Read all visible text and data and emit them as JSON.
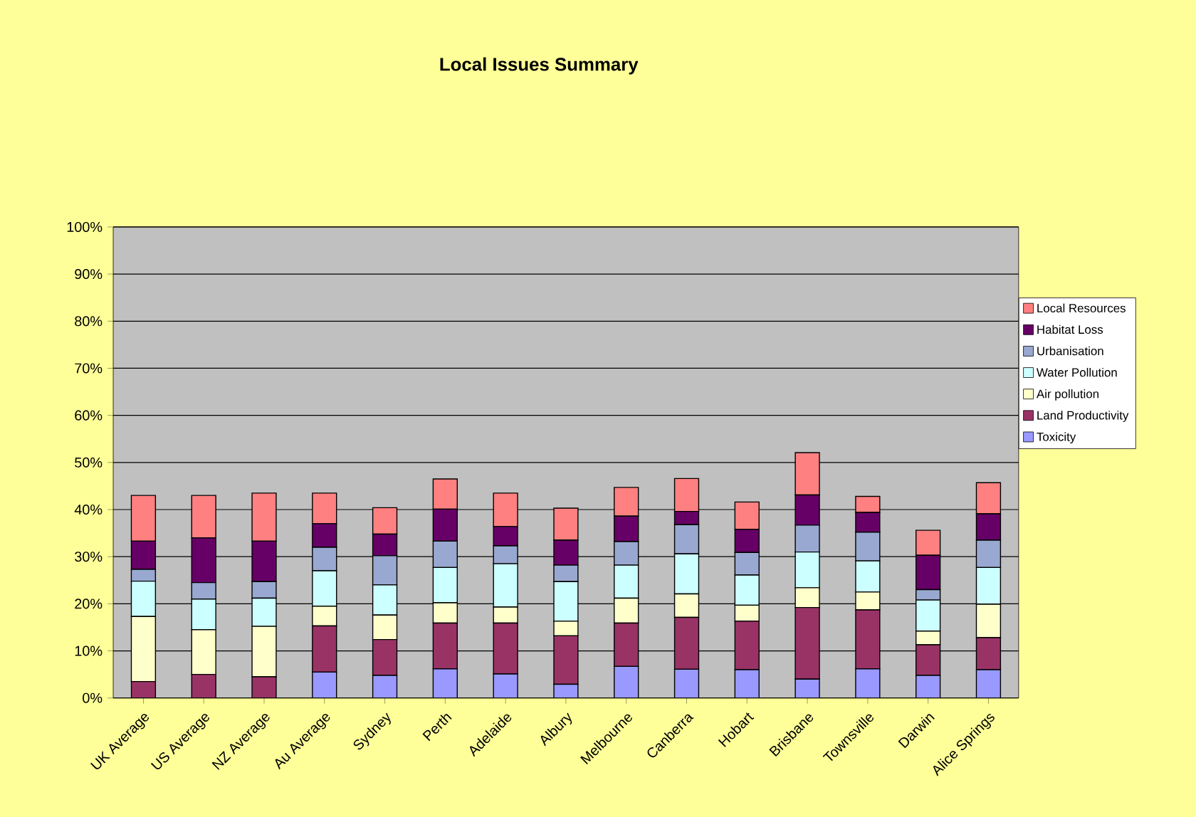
{
  "chart_data": {
    "type": "bar",
    "stacked": true,
    "title": "Local Issues Summary",
    "categories": [
      "UK Average",
      "US Average",
      "NZ Average",
      "Au Average",
      "Sydney",
      "Perth",
      "Adelaide",
      "Albury",
      "Melbourne",
      "Canberra",
      "Hobart",
      "Brisbane",
      "Townsville",
      "Darwin",
      "Alice Springs"
    ],
    "series": [
      {
        "name": "Toxicity",
        "color": "#9999ff",
        "values": [
          0,
          0,
          0,
          5.5,
          4.8,
          6.2,
          5.1,
          2.9,
          6.7,
          6.1,
          6.0,
          4.0,
          6.2,
          4.8,
          6.0
        ]
      },
      {
        "name": "Land Productivity",
        "color": "#993366",
        "values": [
          3.5,
          5,
          4.5,
          9.8,
          7.6,
          9.7,
          10.8,
          10.3,
          9.2,
          11.0,
          10.3,
          15.2,
          12.5,
          6.5,
          6.8
        ]
      },
      {
        "name": "Air pollution",
        "color": "#ffffcc",
        "values": [
          13.8,
          9.5,
          10.7,
          4.2,
          5.2,
          4.3,
          3.4,
          3.1,
          5.3,
          5.0,
          3.4,
          4.2,
          3.8,
          2.9,
          7.1
        ]
      },
      {
        "name": "Water Pollution",
        "color": "#ccffff",
        "values": [
          7.5,
          6.5,
          6.0,
          7.5,
          6.4,
          7.5,
          9.2,
          8.4,
          7.0,
          8.5,
          6.4,
          7.6,
          6.6,
          6.6,
          7.8
        ]
      },
      {
        "name": "Urbanisation",
        "color": "#99a8d0",
        "values": [
          2.5,
          3.5,
          3.5,
          5.0,
          6.2,
          5.6,
          3.8,
          3.5,
          5.0,
          6.2,
          4.8,
          5.7,
          6.1,
          2.2,
          5.8
        ]
      },
      {
        "name": "Habitat Loss",
        "color": "#660066",
        "values": [
          6.0,
          9.5,
          8.6,
          5.0,
          4.6,
          6.8,
          4.1,
          5.3,
          5.4,
          2.8,
          4.9,
          6.4,
          4.2,
          7.3,
          5.6
        ]
      },
      {
        "name": "Local Resources",
        "color": "#ff8080",
        "values": [
          9.7,
          9.0,
          10.2,
          6.5,
          5.6,
          6.4,
          7.1,
          6.8,
          6.1,
          7.0,
          5.8,
          9.0,
          3.4,
          5.3,
          6.6
        ]
      }
    ],
    "ylim": [
      0,
      100
    ],
    "yticks": [
      {
        "value": 0,
        "label": "0%"
      },
      {
        "value": 10,
        "label": "10%"
      },
      {
        "value": 20,
        "label": "20%"
      },
      {
        "value": 30,
        "label": "30%"
      },
      {
        "value": 40,
        "label": "40%"
      },
      {
        "value": 50,
        "label": "50%"
      },
      {
        "value": 60,
        "label": "60%"
      },
      {
        "value": 70,
        "label": "70%"
      },
      {
        "value": 80,
        "label": "80%"
      },
      {
        "value": 90,
        "label": "90%"
      },
      {
        "value": 100,
        "label": "100%"
      }
    ],
    "grid": "y",
    "legend": "right"
  }
}
